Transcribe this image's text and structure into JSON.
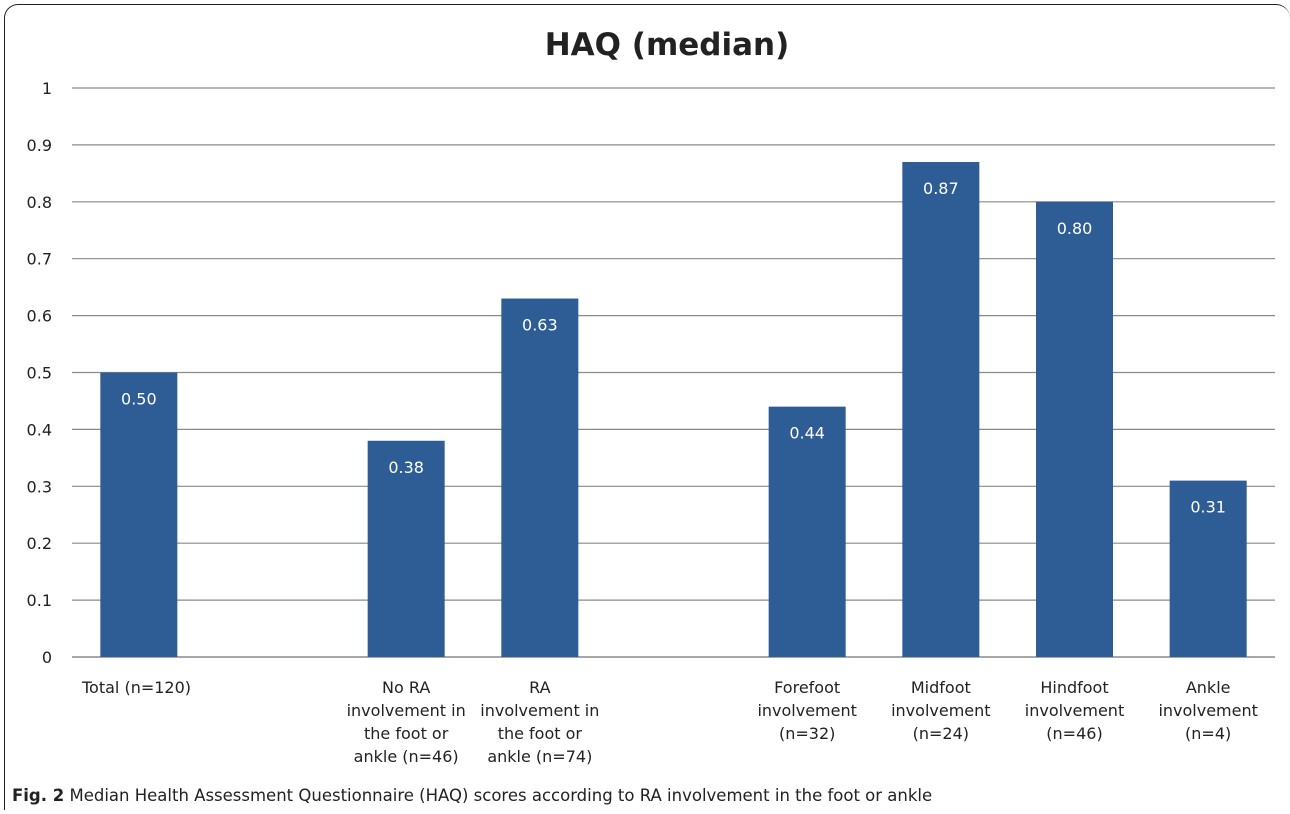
{
  "chart_data": {
    "type": "bar",
    "title": "HAQ (median)",
    "xlabel": "",
    "ylabel": "",
    "ylim": [
      0,
      1
    ],
    "yticks": [
      "0",
      "0.1",
      "0.2",
      "0.3",
      "0.4",
      "0.5",
      "0.6",
      "0.7",
      "0.8",
      "0.9",
      "1"
    ],
    "grid": true,
    "bar_color": "#2e5c94",
    "categories": [
      [
        "Total (n=120)"
      ],
      [
        "",
        ""
      ],
      [
        "No RA",
        "involvement in",
        "the foot or",
        "ankle (n=46)"
      ],
      [
        "RA",
        "involvement in",
        "the foot or",
        "ankle (n=74)"
      ],
      [
        "",
        ""
      ],
      [
        "Forefoot",
        "involvement",
        "(n=32)"
      ],
      [
        "Midfoot",
        "involvement",
        "(n=24)"
      ],
      [
        "Hindfoot",
        "involvement",
        "(n=46)"
      ],
      [
        "Ankle",
        "involvement",
        "(n=4)"
      ]
    ],
    "values": [
      0.5,
      null,
      0.38,
      0.63,
      null,
      0.44,
      0.87,
      0.8,
      0.31
    ],
    "data_labels": [
      "0.50",
      "",
      "0.38",
      "0.63",
      "",
      "0.44",
      "0.87",
      "0.80",
      "0.31"
    ]
  },
  "caption": {
    "fig_label": "Fig. 2",
    "text": " Median Health Assessment Questionnaire (HAQ) scores according to RA involvement in the foot or ankle"
  }
}
